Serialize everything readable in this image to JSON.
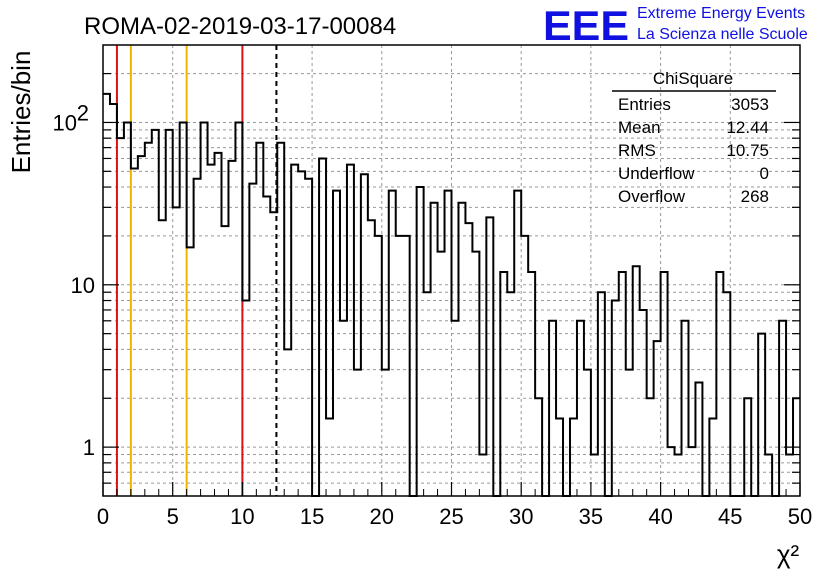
{
  "chart_data": {
    "type": "histogram",
    "title": "ROMA-02-2019-03-17-00084",
    "xlabel": "χ²",
    "ylabel": "Entries/bin",
    "xlim": [
      0,
      50
    ],
    "ylim": [
      0.5,
      300
    ],
    "log_y": true,
    "grid": true,
    "bin_width": 0.5,
    "x_ticks": [
      0,
      5,
      10,
      15,
      20,
      25,
      30,
      35,
      40,
      45,
      50
    ],
    "y_ticks": [
      {
        "value": 1,
        "label": "1"
      },
      {
        "value": 10,
        "label": "10"
      },
      {
        "value": 100,
        "label": "10",
        "sup": "2"
      }
    ],
    "bin_values": [
      150,
      130,
      80,
      100,
      52,
      62,
      75,
      90,
      25,
      90,
      30,
      100,
      17,
      45,
      100,
      55,
      65,
      23,
      58,
      100,
      8,
      42,
      75,
      35,
      28,
      75,
      4,
      55,
      50,
      45,
      0.1,
      60,
      1.5,
      38,
      6,
      55,
      3,
      48,
      25,
      20,
      3,
      38,
      20,
      20,
      0.1,
      40,
      9,
      32,
      16,
      38,
      6,
      32,
      24,
      16,
      0.9,
      26,
      0.1,
      12,
      9,
      38,
      20,
      12,
      2,
      0.1,
      6,
      1.5,
      0.1,
      1.5,
      6,
      3,
      0.9,
      9,
      0.1,
      8,
      12,
      3,
      13,
      7,
      2,
      4.5,
      12,
      1,
      0.9,
      6,
      1,
      2.5,
      0.1,
      1.5,
      12,
      9,
      0.1,
      0.1,
      2,
      0.1,
      5,
      0.9,
      0.1,
      6,
      0.9,
      2
    ],
    "vertical_lines": [
      {
        "x": 1,
        "color": "#dd1111",
        "style": "solid"
      },
      {
        "x": 2,
        "color": "#f0b400",
        "style": "solid"
      },
      {
        "x": 6,
        "color": "#f0b400",
        "style": "solid"
      },
      {
        "x": 10,
        "color": "#dd1111",
        "style": "solid"
      },
      {
        "x": 12.44,
        "color": "#000000",
        "style": "dashed"
      }
    ],
    "stats": {
      "name": "ChiSquare",
      "rows": [
        {
          "label": "Entries",
          "value": "3053"
        },
        {
          "label": "Mean",
          "value": "12.44"
        },
        {
          "label": "RMS",
          "value": "10.75"
        },
        {
          "label": "Underflow",
          "value": "0"
        },
        {
          "label": "Overflow",
          "value": "268"
        }
      ]
    }
  },
  "logo": {
    "text": "EEE",
    "line1": "Extreme Energy Events",
    "line2": "La Scienza nelle Scuole"
  },
  "colors": {
    "histogram": "#000000",
    "grid": "#9a9a9a",
    "logo": "#1010e0"
  }
}
